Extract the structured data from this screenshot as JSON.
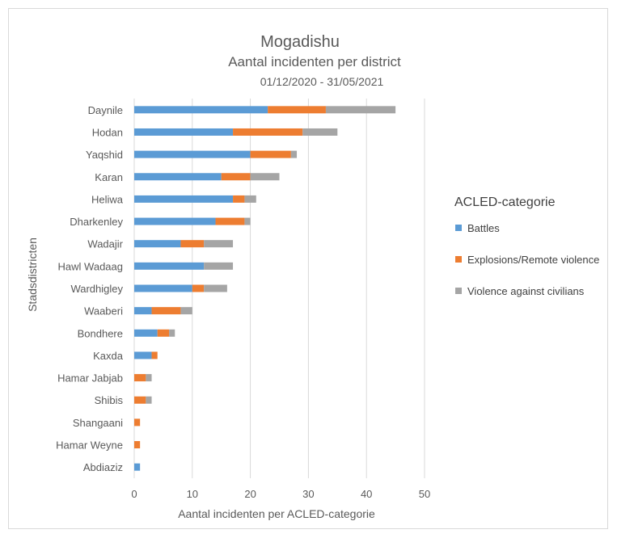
{
  "chart_data": {
    "type": "bar",
    "orientation": "horizontal",
    "stacked": true,
    "title": "Mogadishu",
    "subtitle": "Aantal incidenten per district",
    "date_range": "01/12/2020 - 31/05/2021",
    "xlabel": "Aantal incidenten per ACLED-categorie",
    "ylabel": "Stadsdistricten",
    "xlim": [
      0,
      50
    ],
    "xticks": [
      0,
      10,
      20,
      30,
      40,
      50
    ],
    "grid": true,
    "legend_title": "ACLED-categorie",
    "legend_position": "right",
    "categories": [
      "Daynile",
      "Hodan",
      "Yaqshid",
      "Karan",
      "Heliwa",
      "Dharkenley",
      "Wadajir",
      "Hawl Wadaag",
      "Wardhigley",
      "Waaberi",
      "Bondhere",
      "Kaxda",
      "Hamar Jabjab",
      "Shibis",
      "Shangaani",
      "Hamar Weyne",
      "Abdiaziz"
    ],
    "series": [
      {
        "name": "Battles",
        "color": "#5b9bd5",
        "values": [
          23,
          17,
          20,
          15,
          17,
          14,
          8,
          12,
          10,
          3,
          4,
          3,
          0,
          0,
          0,
          0,
          1
        ]
      },
      {
        "name": "Explosions/Remote violence",
        "color": "#ed7d31",
        "values": [
          10,
          12,
          7,
          5,
          2,
          5,
          4,
          0,
          2,
          5,
          2,
          1,
          2,
          2,
          1,
          1,
          0
        ]
      },
      {
        "name": "Violence against civilians",
        "color": "#a5a5a5",
        "values": [
          12,
          6,
          1,
          5,
          2,
          1,
          5,
          5,
          4,
          2,
          1,
          0,
          1,
          1,
          0,
          0,
          0
        ]
      }
    ]
  }
}
